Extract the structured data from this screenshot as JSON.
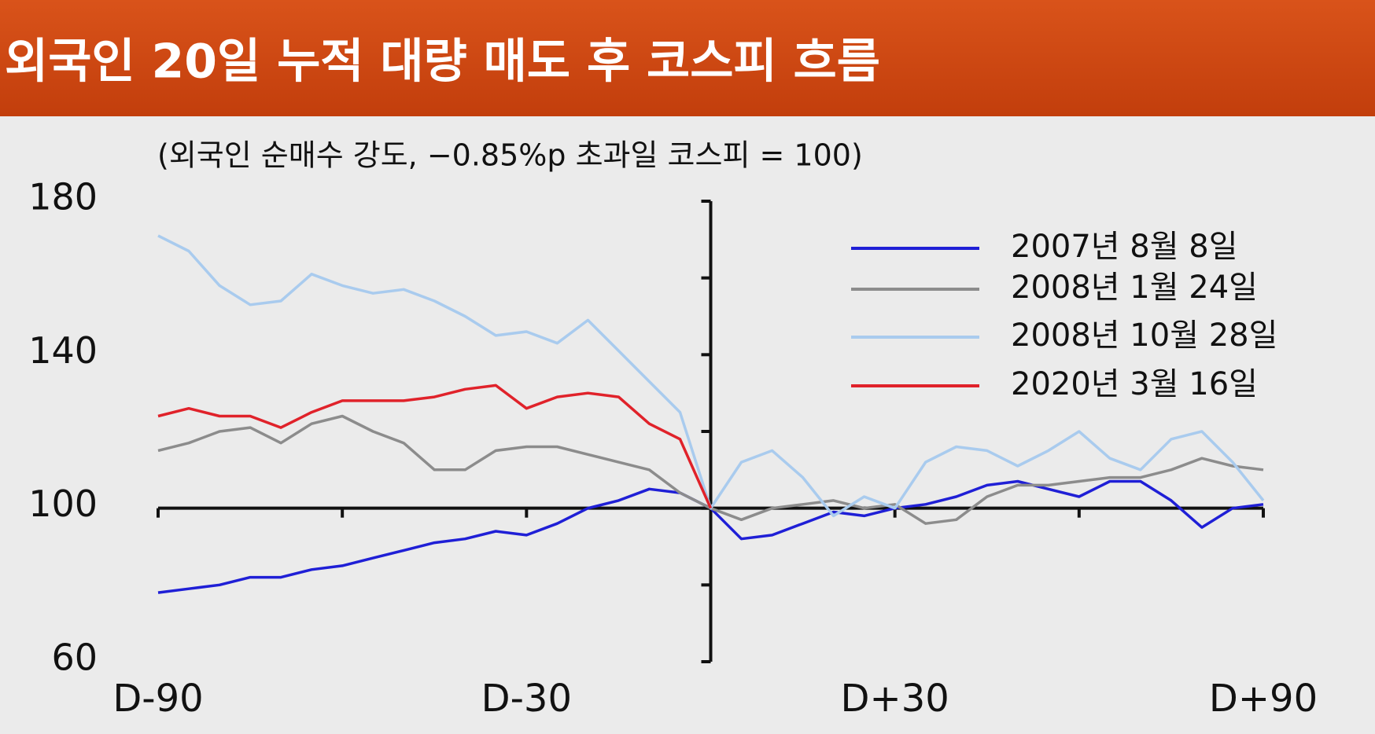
{
  "chart_data": {
    "type": "line",
    "title": "외국인 20일 누적 대량 매도 후 코스피 흐름",
    "subtitle": "(외국인 순매수 강도, −0.85%p  초과일 코스피 = 100)",
    "x": [
      -90,
      -85,
      -80,
      -75,
      -70,
      -65,
      -60,
      -55,
      -50,
      -45,
      -40,
      -35,
      -30,
      -25,
      -20,
      -15,
      -10,
      -5,
      0,
      5,
      10,
      15,
      20,
      25,
      30,
      35,
      40,
      45,
      50,
      55,
      60,
      65,
      70,
      75,
      80,
      85,
      90
    ],
    "xlim": [
      -90,
      90
    ],
    "xticks": [
      {
        "value": -90,
        "label": "D-90"
      },
      {
        "value": -30,
        "label": "D-30"
      },
      {
        "value": 30,
        "label": "D+30"
      },
      {
        "value": 90,
        "label": "D+90"
      }
    ],
    "x_axis_ticks": [
      -90,
      -60,
      -30,
      0,
      30,
      60,
      90
    ],
    "ylim": [
      60,
      180
    ],
    "yticks": [
      60,
      100,
      140,
      180
    ],
    "y_axis_ticks": [
      60,
      80,
      100,
      120,
      140,
      160,
      180
    ],
    "baseline": 100,
    "legend_position": "upper right",
    "series": [
      {
        "name": "2007년 8월 8일",
        "color": "#1f1fd6",
        "values": [
          78,
          79,
          80,
          82,
          82,
          84,
          85,
          87,
          89,
          91,
          92,
          94,
          93,
          96,
          100,
          102,
          105,
          104,
          100,
          92,
          93,
          96,
          99,
          98,
          100,
          101,
          103,
          106,
          107,
          105,
          103,
          107,
          107,
          102,
          95,
          100,
          101
        ]
      },
      {
        "name": "2008년 1월 24일",
        "color": "#8c8c8c",
        "values": [
          115,
          117,
          120,
          121,
          117,
          122,
          124,
          120,
          117,
          110,
          110,
          115,
          116,
          116,
          114,
          112,
          110,
          104,
          100,
          97,
          100,
          101,
          102,
          100,
          101,
          96,
          97,
          103,
          106,
          106,
          107,
          108,
          108,
          110,
          113,
          111,
          110
        ]
      },
      {
        "name": "2008년 10월 28일",
        "color": "#a9cbee",
        "values": [
          171,
          167,
          158,
          153,
          154,
          161,
          158,
          156,
          157,
          154,
          150,
          145,
          146,
          143,
          149,
          141,
          133,
          125,
          100,
          112,
          115,
          108,
          98,
          103,
          100,
          112,
          116,
          115,
          111,
          115,
          120,
          113,
          110,
          118,
          120,
          112,
          102
        ]
      },
      {
        "name": "2020년 3월 16일",
        "color": "#e0222a",
        "values": [
          124,
          126,
          124,
          124,
          121,
          125,
          128,
          128,
          128,
          129,
          131,
          132,
          126,
          129,
          130,
          129,
          122,
          118,
          100,
          null,
          null,
          null,
          null,
          null,
          null,
          null,
          null,
          null,
          null,
          null,
          null,
          null,
          null,
          null,
          null,
          null,
          null
        ]
      }
    ]
  }
}
